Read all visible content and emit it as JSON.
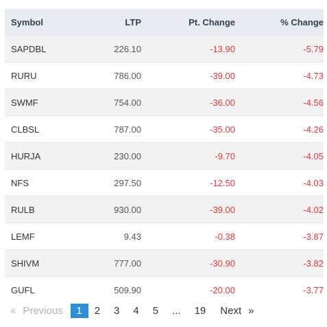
{
  "table": {
    "headers": {
      "symbol": "Symbol",
      "ltp": "LTP",
      "pt_change": "Pt. Change",
      "pct_change": "% Change"
    },
    "rows": [
      {
        "symbol": "SAPDBL",
        "ltp": "226.10",
        "pt_change": "-13.90",
        "pct_change": "-5.79"
      },
      {
        "symbol": "RURU",
        "ltp": "786.00",
        "pt_change": "-39.00",
        "pct_change": "-4.73"
      },
      {
        "symbol": "SWMF",
        "ltp": "754.00",
        "pt_change": "-36.00",
        "pct_change": "-4.56"
      },
      {
        "symbol": "CLBSL",
        "ltp": "787.00",
        "pt_change": "-35.00",
        "pct_change": "-4.26"
      },
      {
        "symbol": "HURJA",
        "ltp": "230.00",
        "pt_change": "-9.70",
        "pct_change": "-4.05"
      },
      {
        "symbol": "NFS",
        "ltp": "297.50",
        "pt_change": "-12.50",
        "pct_change": "-4.03"
      },
      {
        "symbol": "RULB",
        "ltp": "930.00",
        "pt_change": "-39.00",
        "pct_change": "-4.02"
      },
      {
        "symbol": "LEMF",
        "ltp": "9.43",
        "pt_change": "-0.38",
        "pct_change": "-3.87"
      },
      {
        "symbol": "SHIVM",
        "ltp": "777.00",
        "pt_change": "-30.90",
        "pct_change": "-3.82"
      },
      {
        "symbol": "GUFL",
        "ltp": "509.90",
        "pt_change": "-20.00",
        "pct_change": "-3.77"
      }
    ]
  },
  "pagination": {
    "prev_arrow": "«",
    "previous": "Previous",
    "pages": [
      "1",
      "2",
      "3",
      "4",
      "5"
    ],
    "ellipsis": "...",
    "last_page": "19",
    "next": "Next",
    "next_arrow": "»",
    "current_page": "1"
  },
  "colors": {
    "negative": "#e53935",
    "header_bg": "#e8ebef",
    "active_page_bg": "#2f8fd6"
  }
}
